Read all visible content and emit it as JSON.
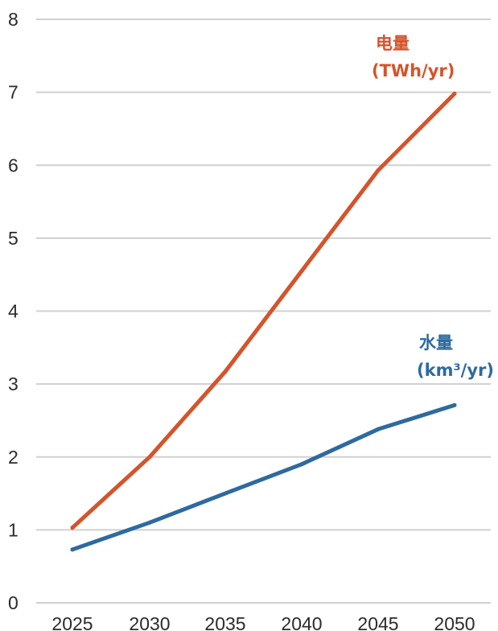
{
  "chart_data": {
    "type": "line",
    "title": "",
    "xlabel": "",
    "ylabel": "",
    "x": [
      2025,
      2030,
      2035,
      2040,
      2045,
      2050
    ],
    "ylim": [
      0,
      8
    ],
    "yticks": [
      0,
      1,
      2,
      3,
      4,
      5,
      6,
      7,
      8
    ],
    "grid": true,
    "legend": "inline labels at line ends",
    "series": [
      {
        "name_line1": "电量",
        "name_line2": "(TWh/yr)",
        "color": "#d4542b",
        "values": [
          1.03,
          2.0,
          3.17,
          4.55,
          5.93,
          6.98
        ]
      },
      {
        "name_line1": "水量",
        "name_line2": "(km³/yr)",
        "color": "#2e6a9f",
        "values": [
          0.73,
          1.1,
          1.5,
          1.9,
          2.38,
          2.71
        ]
      }
    ],
    "colors": {
      "grid": "#d0d0d0",
      "tick_text": "#2b2b2b"
    }
  }
}
